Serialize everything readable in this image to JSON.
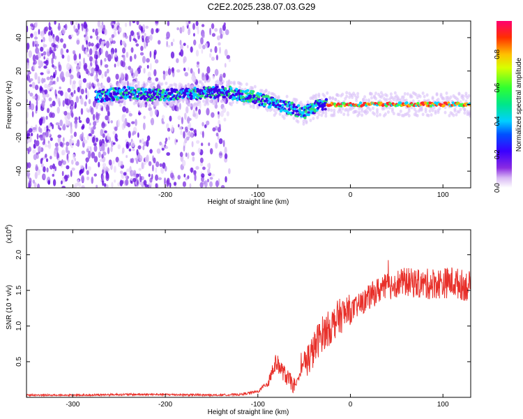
{
  "title": "C2E2.2025.238.07.03.G29",
  "colors": {
    "line": "#e8302a",
    "frame": "#000000",
    "background": "#ffffff"
  },
  "chart_data": [
    {
      "type": "heatmap",
      "xlabel": "Height of straight line (km)",
      "ylabel": "Frequency (Hz)",
      "xlim": [
        -350,
        130
      ],
      "ylim": [
        -50,
        50
      ],
      "xticks": [
        -300,
        -200,
        -100,
        0,
        100
      ],
      "yticks": [
        -40,
        -20,
        0,
        20,
        40
      ],
      "colorbar": {
        "label": "Normalized spectral amplitude",
        "range": [
          0,
          1
        ],
        "ticks": [
          "0.0",
          "0.2",
          "0.4",
          "0.6",
          "0.8"
        ],
        "tick_values": [
          0.0,
          0.2,
          0.4,
          0.6,
          0.8
        ]
      },
      "noise_region_x": [
        -350,
        -135
      ],
      "ridge": {
        "x": [
          -275,
          -240,
          -220,
          -200,
          -180,
          -150,
          -130,
          -110,
          -90,
          -75,
          -60,
          -50,
          -40,
          -30,
          0,
          50,
          100,
          130
        ],
        "y": [
          5,
          7,
          6,
          6,
          6,
          7,
          7,
          5,
          2,
          -1,
          -3,
          -5,
          -2,
          0,
          0,
          0,
          0,
          0
        ]
      }
    },
    {
      "type": "line",
      "xlabel": "Height of straight line (km)",
      "ylabel": "SNR (10 * v/v)",
      "multiplier": "(x10",
      "multiplier_exp": "4",
      "xlim": [
        -350,
        130
      ],
      "ylim": [
        0,
        2.35
      ],
      "xticks": [
        -300,
        -200,
        -100,
        0,
        100
      ],
      "yticks": [
        0.5,
        1.0,
        1.5,
        2.0
      ],
      "ytick_labels": [
        "0.5",
        "1.0",
        "1.5",
        "2.0"
      ],
      "series": [
        {
          "name": "SNR",
          "x": [
            -350,
            -300,
            -250,
            -200,
            -150,
            -120,
            -100,
            -90,
            -85,
            -80,
            -75,
            -70,
            -60,
            -55,
            -50,
            -45,
            -40,
            -35,
            -30,
            -25,
            -20,
            -15,
            -10,
            0,
            10,
            20,
            30,
            40,
            50,
            60,
            70,
            80,
            90,
            100,
            110,
            120,
            130
          ],
          "values": [
            0.03,
            0.03,
            0.04,
            0.04,
            0.03,
            0.04,
            0.08,
            0.2,
            0.35,
            0.5,
            0.4,
            0.3,
            0.15,
            0.3,
            0.5,
            0.55,
            0.65,
            0.8,
            0.9,
            0.95,
            1.0,
            1.1,
            1.15,
            1.2,
            1.3,
            1.4,
            1.5,
            1.55,
            1.6,
            1.62,
            1.6,
            1.58,
            1.6,
            1.6,
            1.62,
            1.58,
            1.55
          ]
        }
      ]
    }
  ]
}
